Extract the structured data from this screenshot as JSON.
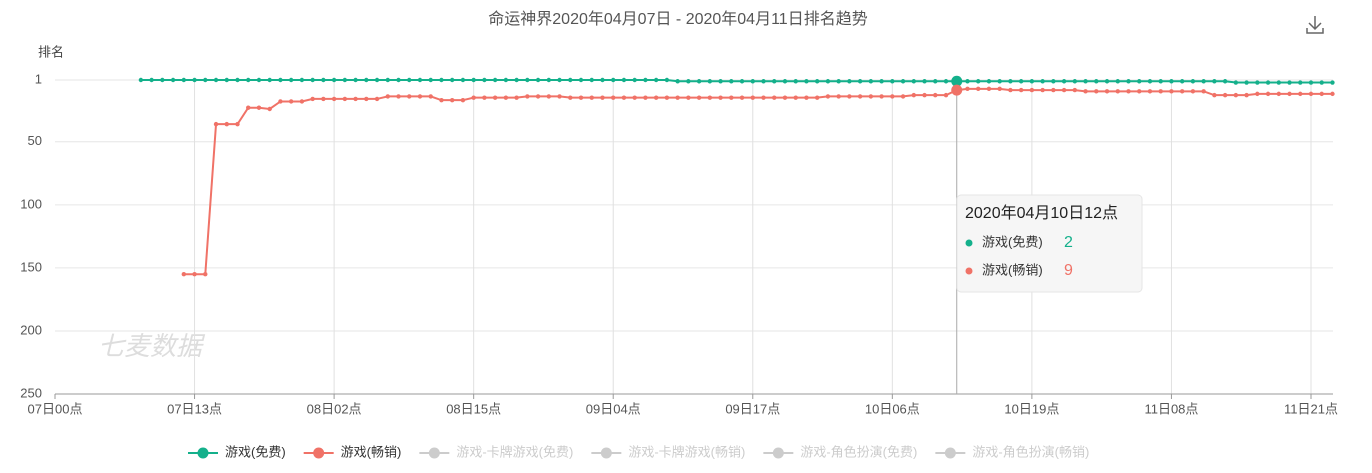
{
  "chart_data": {
    "type": "line",
    "title": "命运神界2020年04月07日 - 2020年04月11日排名趋势",
    "y_label": "排名",
    "watermark": "七麦数据",
    "categories": [
      "07日00点",
      null,
      null,
      null,
      null,
      null,
      null,
      null,
      null,
      null,
      null,
      null,
      null,
      "07日13点",
      null,
      null,
      null,
      null,
      null,
      null,
      null,
      null,
      null,
      null,
      null,
      null,
      "08日02点",
      null,
      null,
      null,
      null,
      null,
      null,
      null,
      null,
      null,
      null,
      null,
      null,
      "08日15点",
      null,
      null,
      null,
      null,
      null,
      null,
      null,
      null,
      null,
      null,
      null,
      null,
      "09日04点",
      null,
      null,
      null,
      null,
      null,
      null,
      null,
      null,
      null,
      null,
      null,
      null,
      "09日17点",
      null,
      null,
      null,
      null,
      null,
      null,
      null,
      null,
      null,
      null,
      null,
      null,
      "10日06点",
      null,
      null,
      null,
      null,
      null,
      null,
      null,
      null,
      null,
      null,
      null,
      null,
      "10日19点",
      null,
      null,
      null,
      null,
      null,
      null,
      null,
      null,
      null,
      null,
      null,
      null,
      "11日08点",
      null,
      null,
      null,
      null,
      null,
      null,
      null,
      null,
      null,
      null,
      null,
      null,
      "11日21点",
      null,
      null
    ],
    "series": [
      {
        "name": "游戏(免费)",
        "color": "#14b08b",
        "values": [
          null,
          null,
          null,
          null,
          null,
          null,
          null,
          null,
          1,
          1,
          1,
          1,
          1,
          1,
          1,
          1,
          1,
          1,
          1,
          1,
          1,
          1,
          1,
          1,
          1,
          1,
          1,
          1,
          1,
          1,
          1,
          1,
          1,
          1,
          1,
          1,
          1,
          1,
          1,
          1,
          1,
          1,
          1,
          1,
          1,
          1,
          1,
          1,
          1,
          1,
          1,
          1,
          1,
          1,
          1,
          1,
          1,
          1,
          2,
          2,
          2,
          2,
          2,
          2,
          2,
          2,
          2,
          2,
          2,
          2,
          2,
          2,
          2,
          2,
          2,
          2,
          2,
          2,
          2,
          2,
          2,
          2,
          2,
          2,
          2,
          2,
          2,
          2,
          2,
          2,
          2,
          2,
          2,
          2,
          2,
          2,
          2,
          2,
          2,
          2,
          2,
          2,
          2,
          2,
          2,
          2,
          2,
          2,
          2,
          2,
          3,
          3,
          3,
          3,
          3,
          3,
          3,
          3,
          3,
          3
        ]
      },
      {
        "name": "游戏(畅销)",
        "color": "#f07267",
        "values": [
          null,
          null,
          null,
          null,
          null,
          null,
          null,
          null,
          null,
          null,
          null,
          null,
          155,
          155,
          155,
          36,
          36,
          36,
          23,
          23,
          24,
          18,
          18,
          18,
          16,
          16,
          16,
          16,
          16,
          16,
          16,
          14,
          14,
          14,
          14,
          14,
          17,
          17,
          17,
          15,
          15,
          15,
          15,
          15,
          14,
          14,
          14,
          14,
          15,
          15,
          15,
          15,
          15,
          15,
          15,
          15,
          15,
          15,
          15,
          15,
          15,
          15,
          15,
          15,
          15,
          15,
          15,
          15,
          15,
          15,
          15,
          15,
          14,
          14,
          14,
          14,
          14,
          14,
          14,
          14,
          13,
          13,
          13,
          13,
          9,
          8,
          8,
          8,
          8,
          9,
          9,
          9,
          9,
          9,
          9,
          9,
          10,
          10,
          10,
          10,
          10,
          10,
          10,
          10,
          10,
          10,
          10,
          10,
          13,
          13,
          13,
          13,
          12,
          12,
          12,
          12,
          12,
          12,
          12,
          12
        ]
      }
    ],
    "legend_inactive": [
      "游戏-卡牌游戏(免费)",
      "游戏-卡牌游戏(畅销)",
      "游戏-角色扮演(免费)",
      "游戏-角色扮演(畅销)"
    ],
    "ylim": [
      1,
      250
    ],
    "y_inverted": true,
    "yticks": [
      1,
      50,
      100,
      150,
      200,
      250
    ],
    "grid": true,
    "tooltip": {
      "title": "2020年04月10日12点",
      "index": 84
    }
  }
}
